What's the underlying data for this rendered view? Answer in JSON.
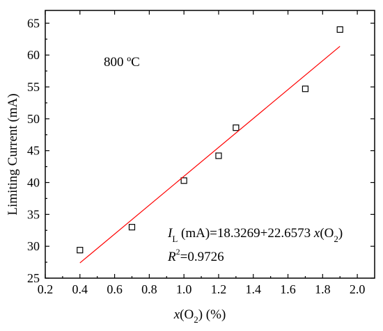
{
  "chart_data": {
    "type": "scatter",
    "xlabel_parts": [
      "x",
      "(O",
      "2",
      ") (%)"
    ],
    "ylabel": "Limiting Current (mA)",
    "xlim": [
      0.2,
      2.1
    ],
    "ylim": [
      25,
      67
    ],
    "xticks": [
      0.2,
      0.4,
      0.6,
      0.8,
      1.0,
      1.2,
      1.4,
      1.6,
      1.8,
      2.0
    ],
    "xtick_labels": [
      "0.2",
      "0.4",
      "0.6",
      "0.8",
      "1.0",
      "1.2",
      "1.4",
      "1.6",
      "1.8",
      "2.0"
    ],
    "yticks": [
      25,
      30,
      35,
      40,
      45,
      50,
      55,
      60,
      65
    ],
    "ytick_labels": [
      "25",
      "30",
      "35",
      "40",
      "45",
      "50",
      "55",
      "60",
      "65"
    ],
    "grid": false,
    "series": [
      {
        "marker": "open-square",
        "color": "#000000",
        "x": [
          0.4,
          0.7,
          1.0,
          1.2,
          1.3,
          1.7,
          1.9
        ],
        "y": [
          29.4,
          33.0,
          40.3,
          44.2,
          48.6,
          54.7,
          64.0
        ]
      }
    ],
    "fit": {
      "color": "#ff0000",
      "intercept": 18.3269,
      "slope": 22.6573,
      "x_range": [
        0.4,
        1.9
      ]
    },
    "annotations": {
      "temperature": "800 ºC",
      "equation_parts": [
        "I",
        "L",
        " (mA)=18.3269+22.6573 ",
        "x",
        "(O",
        "2",
        ")"
      ],
      "r2_parts": [
        "R",
        "2",
        "=0.9726"
      ]
    }
  }
}
